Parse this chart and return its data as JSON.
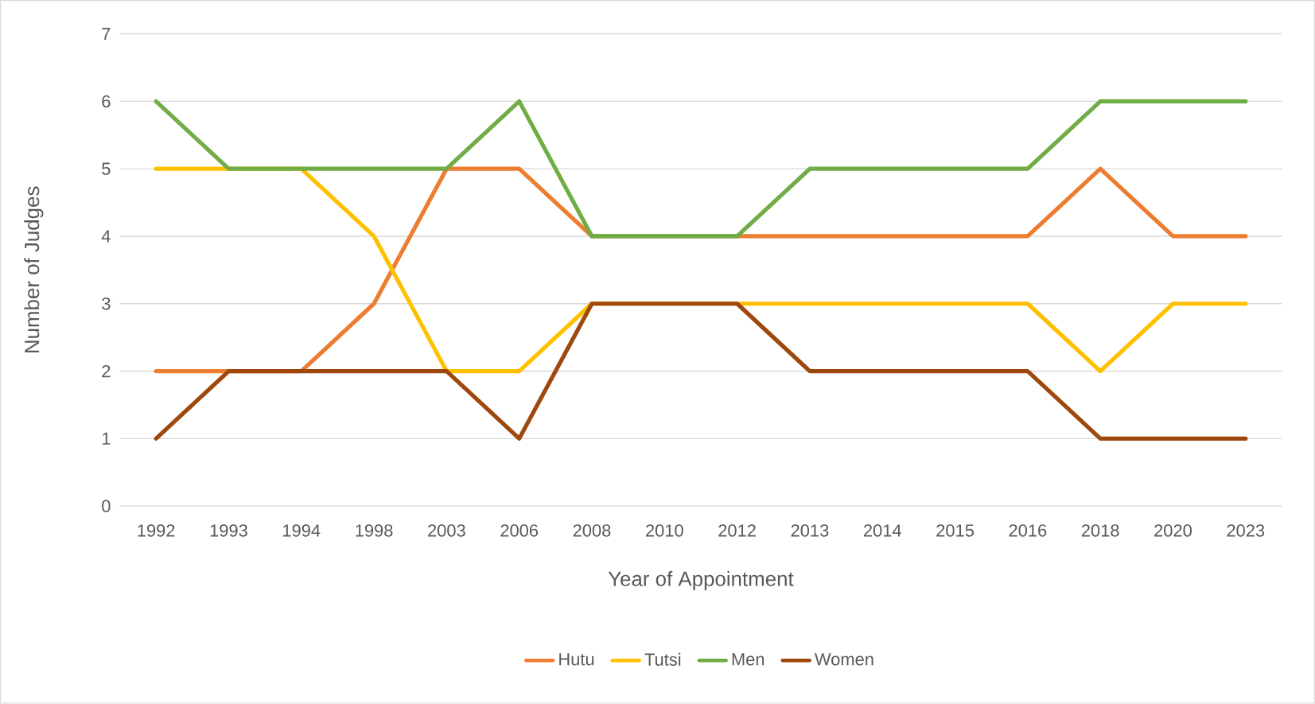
{
  "chart_data": {
    "type": "line",
    "xlabel": "Year of Appointment",
    "ylabel": "Number of Judges",
    "categories": [
      "1992",
      "1993",
      "1994",
      "1998",
      "2003",
      "2006",
      "2008",
      "2010",
      "2012",
      "2013",
      "2014",
      "2015",
      "2016",
      "2018",
      "2020",
      "2023"
    ],
    "series": [
      {
        "name": "Hutu",
        "color": "#ed7d31",
        "values": [
          2,
          2,
          2,
          3,
          5,
          5,
          4,
          4,
          4,
          4,
          4,
          4,
          4,
          5,
          4,
          4
        ]
      },
      {
        "name": "Tutsi",
        "color": "#ffc000",
        "values": [
          5,
          5,
          5,
          4,
          2,
          2,
          3,
          3,
          3,
          3,
          3,
          3,
          3,
          2,
          3,
          3
        ]
      },
      {
        "name": "Men",
        "color": "#70ad47",
        "values": [
          6,
          5,
          5,
          5,
          5,
          6,
          4,
          4,
          4,
          5,
          5,
          5,
          5,
          6,
          6,
          6
        ]
      },
      {
        "name": "Women",
        "color": "#9e480e",
        "values": [
          1,
          2,
          2,
          2,
          2,
          1,
          3,
          3,
          3,
          2,
          2,
          2,
          2,
          1,
          1,
          1
        ]
      }
    ],
    "ylim": [
      0,
      7
    ],
    "yticks": [
      0,
      1,
      2,
      3,
      4,
      5,
      6,
      7
    ],
    "grid": "y",
    "legend": "bottom"
  }
}
